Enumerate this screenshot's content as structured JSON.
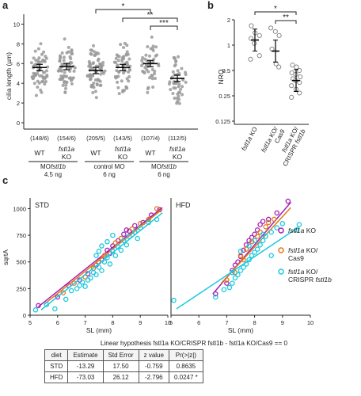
{
  "panels": {
    "a": "a",
    "b": "b",
    "c": "c"
  },
  "colors": {
    "kd_dots": "#9a9a9a",
    "purple": "#a61fb5",
    "orange": "#e07a1a",
    "cyan": "#1ac9df"
  },
  "panel_a": {
    "ylabel": "cilia length (µm)",
    "yticks": [
      "0",
      "2",
      "4",
      "6",
      "8",
      "10"
    ],
    "ylim": [
      0,
      11
    ],
    "groups": [
      {
        "label_top": "WT",
        "label_bottom": "",
        "n": "(148/6)",
        "mean": 5.6
      },
      {
        "label_top": "fstl1a",
        "label_bottom": "KO",
        "n": "(154/6)",
        "mean": 5.7
      },
      {
        "label_top": "WT",
        "label_bottom": "",
        "n": "(205/5)",
        "mean": 5.3
      },
      {
        "label_top": "fstl1a",
        "label_bottom": "KO",
        "n": "(143/5)",
        "mean": 5.6
      },
      {
        "label_top": "WT",
        "label_bottom": "",
        "n": "(107/4)",
        "mean": 6.0
      },
      {
        "label_top": "fstl1a",
        "label_bottom": "KO",
        "n": "(112/5)",
        "mean": 4.5
      }
    ],
    "conditions": [
      {
        "line1": "MO",
        "line1_ital": "fstl1b",
        "line2": "4.5 ng"
      },
      {
        "line1": "control MO",
        "line1_ital": "",
        "line2": "6 ng"
      },
      {
        "line1": "MO",
        "line1_ital": "fstl1b",
        "line2": "6 ng"
      }
    ],
    "significance": [
      {
        "from": 2,
        "to": 4,
        "label": "*"
      },
      {
        "from": 3,
        "to": 5,
        "label": "**"
      },
      {
        "from": 4,
        "to": 5,
        "label": "***"
      }
    ]
  },
  "panel_b": {
    "ylabel": "NRQ",
    "yticks": [
      "2",
      "1",
      "0.5",
      "0.25",
      "0.125"
    ],
    "scale": "log2",
    "groups": [
      {
        "label": "fstl1a KO",
        "label_ital": "fstl1a",
        "label_rest": " KO",
        "label2": "",
        "values": [
          1.7,
          1.4,
          1.3,
          1.2,
          1.05,
          0.75,
          0.68
        ],
        "mean": 1.15
      },
      {
        "label": "fstl1a KO/ Cas9",
        "label_ital": "fstl1a",
        "label_rest": " KO/",
        "label2": "Cas9",
        "values": [
          1.6,
          1.45,
          1.3,
          0.9,
          0.6,
          0.55
        ],
        "mean": 0.85
      },
      {
        "label": "fstl1a KO/ CRISPR fstl1b",
        "label_ital": "fstl1a",
        "label_rest": " KO/",
        "label2": "CRISPR ",
        "label2_ital": "fstl1b",
        "values": [
          0.58,
          0.55,
          0.5,
          0.47,
          0.45,
          0.42,
          0.4,
          0.38,
          0.36,
          0.33,
          0.3,
          0.27,
          0.24
        ],
        "mean": 0.38
      }
    ],
    "significance": [
      {
        "from": 0,
        "to": 2,
        "label": "*"
      },
      {
        "from": 1,
        "to": 2,
        "label": "**"
      }
    ]
  },
  "chart_data": [
    {
      "type": "scatter",
      "title": "STD",
      "xlabel": "SL (mm)",
      "ylabel": "sqrtA",
      "xlim": [
        5,
        10
      ],
      "ylim": [
        0,
        1100
      ],
      "xticks": [
        "5",
        "6",
        "7",
        "8",
        "9",
        "10"
      ],
      "yticks": [
        "0",
        "250",
        "500",
        "750",
        "1000"
      ],
      "series": [
        {
          "name": "fstl1a KO",
          "color": "#a61fb5",
          "points": [
            [
              5.3,
              90
            ],
            [
              6.0,
              170
            ],
            [
              6.4,
              280
            ],
            [
              6.8,
              330
            ],
            [
              7.1,
              390
            ],
            [
              7.4,
              470
            ],
            [
              7.6,
              520
            ],
            [
              7.8,
              610
            ],
            [
              8.0,
              650
            ],
            [
              8.2,
              700
            ],
            [
              8.4,
              760
            ],
            [
              8.6,
              790
            ],
            [
              8.8,
              840
            ],
            [
              9.1,
              870
            ],
            [
              9.4,
              940
            ],
            [
              9.7,
              990
            ],
            [
              7.9,
              580
            ],
            [
              8.5,
              800
            ]
          ],
          "fit": [
            [
              5.3,
              80
            ],
            [
              9.8,
              1010
            ]
          ]
        },
        {
          "name": "fstl1a KO/ Cas9",
          "color": "#e07a1a",
          "points": [
            [
              6.2,
              210
            ],
            [
              6.6,
              300
            ],
            [
              7.0,
              360
            ],
            [
              7.3,
              440
            ],
            [
              7.7,
              560
            ],
            [
              8.1,
              680
            ],
            [
              8.3,
              720
            ],
            [
              8.7,
              810
            ],
            [
              9.0,
              860
            ],
            [
              9.3,
              900
            ],
            [
              9.6,
              1000
            ],
            [
              7.5,
              500
            ]
          ],
          "fit": [
            [
              5.5,
              100
            ],
            [
              9.8,
              995
            ]
          ]
        },
        {
          "name": "fstl1a KO/ CRISPR fstl1b",
          "color": "#1ac9df",
          "points": [
            [
              5.2,
              50
            ],
            [
              5.6,
              100
            ],
            [
              5.9,
              60
            ],
            [
              6.3,
              150
            ],
            [
              6.5,
              230
            ],
            [
              6.7,
              250
            ],
            [
              6.9,
              310
            ],
            [
              7.0,
              270
            ],
            [
              7.2,
              350
            ],
            [
              7.3,
              400
            ],
            [
              7.4,
              380
            ],
            [
              7.5,
              450
            ],
            [
              7.6,
              420
            ],
            [
              7.7,
              500
            ],
            [
              7.8,
              540
            ],
            [
              7.9,
              480
            ],
            [
              8.0,
              600
            ],
            [
              8.1,
              560
            ],
            [
              8.2,
              640
            ],
            [
              8.3,
              610
            ],
            [
              8.4,
              700
            ],
            [
              8.5,
              660
            ],
            [
              8.6,
              740
            ],
            [
              8.8,
              780
            ],
            [
              8.9,
              720
            ],
            [
              9.0,
              820
            ],
            [
              9.3,
              870
            ],
            [
              9.6,
              900
            ],
            [
              7.1,
              330
            ],
            [
              6.8,
              280
            ],
            [
              7.5,
              600
            ],
            [
              7.6,
              650
            ],
            [
              7.8,
              690
            ],
            [
              8.0,
              750
            ],
            [
              7.4,
              560
            ]
          ],
          "fit": [
            [
              5.4,
              50
            ],
            [
              9.8,
              960
            ]
          ]
        }
      ]
    },
    {
      "type": "scatter",
      "title": "HFD",
      "xlabel": "SL (mm)",
      "ylabel": "",
      "xlim": [
        5,
        10
      ],
      "ylim": [
        0,
        1100
      ],
      "xticks": [
        "5",
        "6",
        "7",
        "8",
        "9",
        "10"
      ],
      "yticks": [],
      "series": [
        {
          "name": "fstl1a KO",
          "color": "#a61fb5",
          "points": [
            [
              6.6,
              200
            ],
            [
              7.0,
              300
            ],
            [
              7.2,
              420
            ],
            [
              7.4,
              500
            ],
            [
              7.5,
              550
            ],
            [
              7.6,
              610
            ],
            [
              7.7,
              660
            ],
            [
              7.8,
              700
            ],
            [
              7.9,
              730
            ],
            [
              8.0,
              760
            ],
            [
              8.1,
              800
            ],
            [
              8.2,
              850
            ],
            [
              8.3,
              880
            ],
            [
              8.5,
              900
            ],
            [
              8.8,
              960
            ],
            [
              9.2,
              1070
            ],
            [
              7.3,
              470
            ]
          ],
          "fit": [
            [
              6.5,
              200
            ],
            [
              9.3,
              1060
            ]
          ]
        },
        {
          "name": "fstl1a KO/ Cas9",
          "color": "#e07a1a",
          "points": [
            [
              7.0,
              330
            ],
            [
              7.3,
              400
            ],
            [
              7.5,
              560
            ],
            [
              7.7,
              620
            ],
            [
              7.9,
              690
            ],
            [
              8.1,
              740
            ],
            [
              8.2,
              780
            ],
            [
              8.4,
              830
            ],
            [
              8.5,
              870
            ],
            [
              8.7,
              900
            ],
            [
              7.6,
              520
            ]
          ],
          "fit": [
            [
              6.8,
              300
            ],
            [
              9.3,
              1010
            ]
          ]
        },
        {
          "name": "fstl1a KO/ CRISPR fstl1b",
          "color": "#1ac9df",
          "points": [
            [
              5.1,
              140
            ],
            [
              6.6,
              170
            ],
            [
              6.9,
              240
            ],
            [
              7.1,
              260
            ],
            [
              7.2,
              300
            ],
            [
              7.3,
              350
            ],
            [
              7.4,
              380
            ],
            [
              7.5,
              420
            ],
            [
              7.6,
              450
            ],
            [
              7.7,
              480
            ],
            [
              7.8,
              520
            ],
            [
              7.9,
              560
            ],
            [
              8.0,
              590
            ],
            [
              8.1,
              620
            ],
            [
              8.2,
              660
            ],
            [
              8.3,
              700
            ],
            [
              8.4,
              740
            ],
            [
              8.6,
              780
            ],
            [
              8.8,
              820
            ],
            [
              9.0,
              860
            ],
            [
              9.5,
              800
            ],
            [
              9.6,
              850
            ],
            [
              7.5,
              600
            ],
            [
              7.8,
              650
            ],
            [
              8.0,
              700
            ],
            [
              8.3,
              760
            ],
            [
              7.2,
              400
            ],
            [
              8.6,
              560
            ]
          ],
          "fit": [
            [
              5.2,
              60
            ],
            [
              9.6,
              830
            ]
          ]
        }
      ]
    }
  ],
  "legend": [
    {
      "ital": "fstl1a",
      "rest": " KO",
      "line2": "",
      "line2_ital": "",
      "color": "#a61fb5"
    },
    {
      "ital": "fstl1a",
      "rest": " KO/",
      "line2": "Cas9",
      "line2_ital": "",
      "color": "#e07a1a"
    },
    {
      "ital": "fstl1a",
      "rest": " KO/",
      "line2": "CRISPR ",
      "line2_ital": "fstl1b",
      "color": "#1ac9df"
    }
  ],
  "table": {
    "title": "Linear hypothesis fstl1a KO/CRISPR fstl1b - fstl1a KO/Cas9 == 0",
    "headers": [
      "diet",
      "Estimate",
      "Std Error",
      "z value",
      "Pr(>|z|)"
    ],
    "rows": [
      [
        "STD",
        "-13.29",
        "17.50",
        "-0.759",
        "0.8635"
      ],
      [
        "HFD",
        "-73.03",
        "26.12",
        "-2.796",
        "0.0247 *"
      ]
    ]
  }
}
